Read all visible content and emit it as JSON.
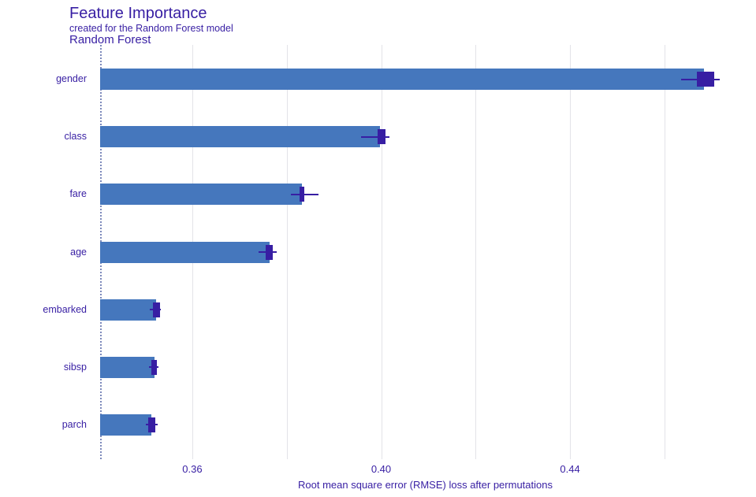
{
  "header": {
    "title": "Feature Importance",
    "subtitle": "created for the Random Forest model",
    "facet_label": "Random Forest"
  },
  "chart_data": {
    "type": "bar",
    "orientation": "horizontal",
    "title": "Feature Importance",
    "subtitle": "created for the Random Forest model",
    "facet": "Random Forest",
    "xlabel": "Root mean square error (RMSE) loss after permutations",
    "ylabel": "",
    "grid": "vertical-only",
    "legend": "none",
    "baseline_full_model_loss": 0.3405,
    "axis": {
      "min": 0.3393,
      "max": 0.4794,
      "gridlines": [
        0.36,
        0.38,
        0.4,
        0.42,
        0.44,
        0.46
      ],
      "tick_labels": [
        {
          "value": 0.36,
          "label": "0.36"
        },
        {
          "value": 0.4,
          "label": "0.40"
        },
        {
          "value": 0.44,
          "label": "0.44"
        }
      ]
    },
    "categories": [
      "gender",
      "class",
      "fare",
      "age",
      "embarked",
      "sibsp",
      "parch"
    ],
    "values": [
      0.4684,
      0.3997,
      0.3832,
      0.3764,
      0.3523,
      0.352,
      0.3514
    ],
    "boxplots": [
      {
        "low": 0.4636,
        "q1": 0.4669,
        "median": 0.4688,
        "q3": 0.4705,
        "high": 0.4718
      },
      {
        "low": 0.3957,
        "q1": 0.3992,
        "median": 0.4,
        "q3": 0.4009,
        "high": 0.4017
      },
      {
        "low": 0.3809,
        "q1": 0.3827,
        "median": 0.3832,
        "q3": 0.3837,
        "high": 0.3867
      },
      {
        "low": 0.374,
        "q1": 0.3756,
        "median": 0.3764,
        "q3": 0.377,
        "high": 0.3779
      },
      {
        "low": 0.351,
        "q1": 0.3517,
        "median": 0.3523,
        "q3": 0.3532,
        "high": 0.3534
      },
      {
        "low": 0.3509,
        "q1": 0.3514,
        "median": 0.352,
        "q3": 0.3525,
        "high": 0.3529
      },
      {
        "low": 0.3501,
        "q1": 0.3507,
        "median": 0.3514,
        "q3": 0.3521,
        "high": 0.3526
      }
    ],
    "colors": {
      "bar": "#4577bd",
      "box": "#371ea3",
      "text": "#371ea3",
      "grid": "#e3e3e8",
      "baseline": "#7c89bb"
    }
  }
}
